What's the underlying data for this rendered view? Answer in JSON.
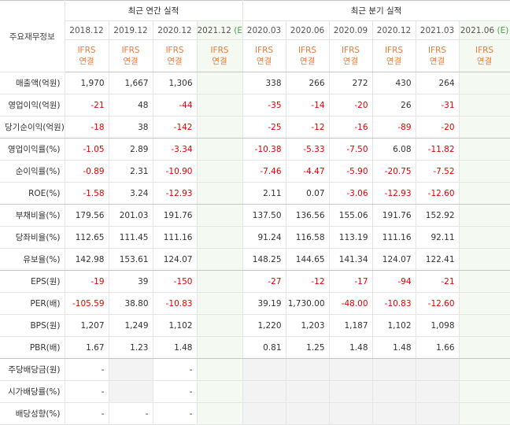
{
  "header": {
    "label": "주요재무정보",
    "annual_title": "최근 연간 실적",
    "quarter_title": "최근 분기 실적",
    "ifrs_top": "IFRS",
    "ifrs_bottom": "연결",
    "estimate_mark": "(E)",
    "annual": [
      "2018.12",
      "2019.12",
      "2020.12",
      "2021.12"
    ],
    "quarter": [
      "2020.03",
      "2020.06",
      "2020.09",
      "2020.12",
      "2021.03",
      "2021.06"
    ]
  },
  "rows": [
    {
      "label": "매출액(억원)",
      "annual": [
        "1,970",
        "1,667",
        "1,306",
        ""
      ],
      "quarter": [
        "338",
        "266",
        "272",
        "430",
        "264",
        ""
      ]
    },
    {
      "label": "영업이익(억원)",
      "annual": [
        "-21",
        "48",
        "-44",
        ""
      ],
      "quarter": [
        "-35",
        "-14",
        "-20",
        "26",
        "-31",
        ""
      ]
    },
    {
      "label": "당기순이익(억원)",
      "annual": [
        "-18",
        "38",
        "-142",
        ""
      ],
      "quarter": [
        "-25",
        "-12",
        "-16",
        "-89",
        "-20",
        ""
      ]
    },
    {
      "label": "영업이익률(%)",
      "annual": [
        "-1.05",
        "2.89",
        "-3.34",
        ""
      ],
      "quarter": [
        "-10.38",
        "-5.33",
        "-7.50",
        "6.08",
        "-11.82",
        ""
      ]
    },
    {
      "label": "순이익률(%)",
      "annual": [
        "-0.89",
        "2.31",
        "-10.90",
        ""
      ],
      "quarter": [
        "-7.46",
        "-4.47",
        "-5.90",
        "-20.75",
        "-7.52",
        ""
      ]
    },
    {
      "label": "ROE(%)",
      "annual": [
        "-1.58",
        "3.24",
        "-12.93",
        ""
      ],
      "quarter": [
        "2.11",
        "0.07",
        "-3.06",
        "-12.93",
        "-12.60",
        ""
      ]
    },
    {
      "label": "부채비율(%)",
      "annual": [
        "179.56",
        "201.03",
        "191.76",
        ""
      ],
      "quarter": [
        "137.50",
        "136.56",
        "155.06",
        "191.76",
        "152.92",
        ""
      ]
    },
    {
      "label": "당좌비율(%)",
      "annual": [
        "112.65",
        "111.45",
        "111.16",
        ""
      ],
      "quarter": [
        "91.24",
        "116.58",
        "113.19",
        "111.16",
        "92.11",
        ""
      ]
    },
    {
      "label": "유보율(%)",
      "annual": [
        "142.98",
        "153.61",
        "124.07",
        ""
      ],
      "quarter": [
        "148.25",
        "144.65",
        "141.34",
        "124.07",
        "122.41",
        ""
      ]
    },
    {
      "label": "EPS(원)",
      "annual": [
        "-19",
        "39",
        "-150",
        ""
      ],
      "quarter": [
        "-27",
        "-12",
        "-17",
        "-94",
        "-21",
        ""
      ]
    },
    {
      "label": "PER(배)",
      "annual": [
        "-105.59",
        "38.80",
        "-10.83",
        ""
      ],
      "quarter": [
        "39.19",
        "1,730.00",
        "-48.00",
        "-10.83",
        "-12.60",
        ""
      ]
    },
    {
      "label": "BPS(원)",
      "annual": [
        "1,207",
        "1,249",
        "1,102",
        ""
      ],
      "quarter": [
        "1,220",
        "1,203",
        "1,187",
        "1,102",
        "1,098",
        ""
      ]
    },
    {
      "label": "PBR(배)",
      "annual": [
        "1.67",
        "1.23",
        "1.48",
        ""
      ],
      "quarter": [
        "0.81",
        "1.25",
        "1.48",
        "1.48",
        "1.66",
        ""
      ]
    },
    {
      "label": "주당배당금(원)",
      "annual": [
        "-",
        "",
        "-",
        ""
      ],
      "quarter": [
        "",
        "",
        "",
        "",
        "",
        ""
      ]
    },
    {
      "label": "시가배당률(%)",
      "annual": [
        "-",
        "",
        "-",
        ""
      ],
      "quarter": [
        "",
        "",
        "",
        "",
        "",
        ""
      ]
    },
    {
      "label": "배당성향(%)",
      "annual": [
        "-",
        "-",
        "-",
        ""
      ],
      "quarter": [
        "",
        "",
        "",
        "",
        "",
        ""
      ]
    }
  ],
  "colors": {
    "negative": "#e30000",
    "ifrs": "#ef7a31",
    "estimate_bg": "#f4faf1",
    "nodata_bg": "#f3f3f3"
  }
}
